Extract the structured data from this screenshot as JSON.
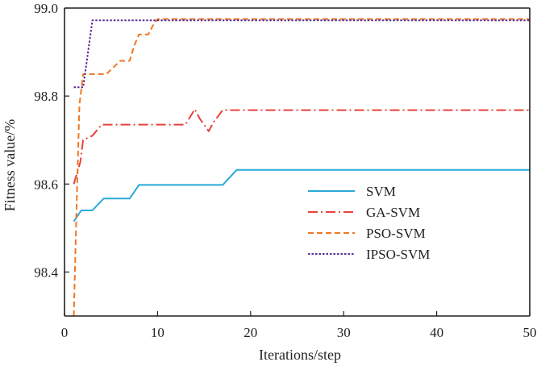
{
  "chart_data": {
    "type": "line",
    "xlabel": "Iterations/step",
    "ylabel": "Fitness value/%",
    "xlim": [
      0,
      50
    ],
    "ylim": [
      98.3,
      99.0
    ],
    "xticks": [
      "0",
      "10",
      "20",
      "30",
      "40",
      "50"
    ],
    "yticks": [
      "98.4",
      "98.6",
      "98.8",
      "99.0"
    ],
    "grid": false,
    "legend_position": "center-right",
    "series": [
      {
        "name": "SVM",
        "color": "#2aa9d8",
        "dash": "solid",
        "x": [
          1,
          1.8,
          3,
          4.2,
          7,
          8,
          17,
          18.5,
          50
        ],
        "y": [
          98.515,
          98.54,
          98.54,
          98.567,
          98.567,
          98.598,
          98.598,
          98.632,
          98.632
        ]
      },
      {
        "name": "GA-SVM",
        "color": "#e8423c",
        "dash": "dash-dot",
        "x": [
          1,
          1.7,
          2,
          3,
          4,
          5,
          8,
          13,
          14,
          14.5,
          15,
          15.5,
          16,
          17,
          18.5,
          20,
          50
        ],
        "y": [
          98.6,
          98.65,
          98.7,
          98.71,
          98.735,
          98.735,
          98.735,
          98.735,
          98.77,
          98.75,
          98.735,
          98.72,
          98.74,
          98.768,
          98.768,
          98.768,
          98.768
        ]
      },
      {
        "name": "PSO-SVM",
        "color": "#f07823",
        "dash": "dashed",
        "x": [
          1,
          1.3,
          1.6,
          2,
          4.5,
          6,
          7,
          7.5,
          8,
          9,
          9.5,
          10,
          50
        ],
        "y": [
          98.3,
          98.55,
          98.78,
          98.85,
          98.85,
          98.88,
          98.88,
          98.915,
          98.94,
          98.94,
          98.96,
          98.975,
          98.975
        ]
      },
      {
        "name": "IPSO-SVM",
        "color": "#5b2d91",
        "dash": "dotted",
        "x": [
          1,
          2,
          2.2,
          3,
          50
        ],
        "y": [
          98.82,
          98.82,
          98.85,
          98.972,
          98.972
        ]
      }
    ]
  }
}
